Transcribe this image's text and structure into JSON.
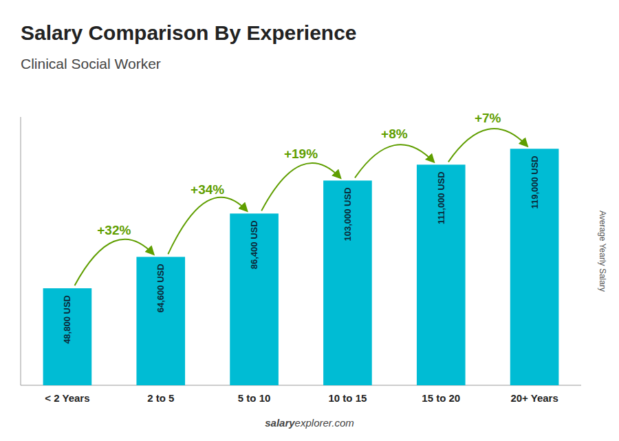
{
  "chart_data": {
    "type": "bar",
    "title": "Salary Comparison By Experience",
    "subtitle": "Clinical Social Worker",
    "y_label": "Average Yearly Salary",
    "categories": [
      "< 2 Years",
      "2 to 5",
      "5 to 10",
      "10 to 15",
      "15 to 20",
      "20+ Years"
    ],
    "values": [
      48800,
      64600,
      86400,
      103000,
      111000,
      119000
    ],
    "value_labels": [
      "48,800 USD",
      "64,600 USD",
      "86,400 USD",
      "103,000 USD",
      "111,000 USD",
      "119,000 USD"
    ],
    "data_labels": true,
    "annotations": [
      "+32%",
      "+34%",
      "+19%",
      "+8%",
      "+7%"
    ],
    "footer": [
      "salary",
      "explorer.com"
    ],
    "color": "#00bcd4",
    "ylim": [
      0,
      135000
    ],
    "tick_labels": "x",
    "grid": false
  }
}
